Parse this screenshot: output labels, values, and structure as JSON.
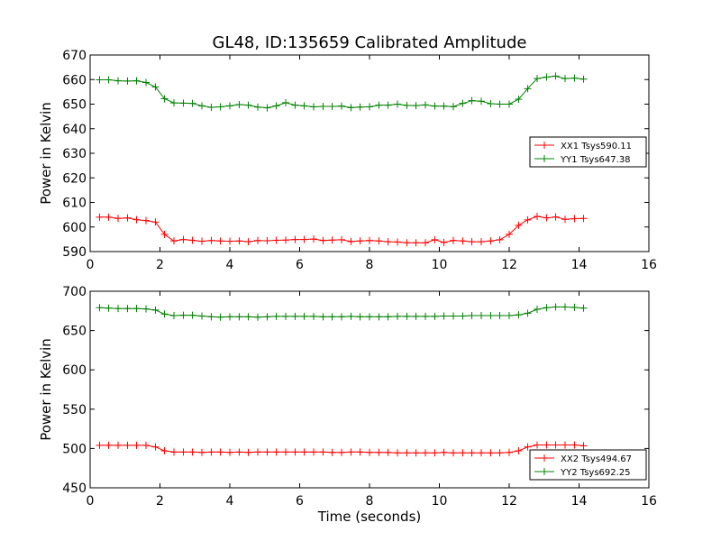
{
  "chart_data": [
    {
      "type": "line",
      "title": "GL48, ID:135659 Calibrated Amplitude",
      "xlabel": "",
      "ylabel": "Power in Kelvin",
      "xlim": [
        0,
        16
      ],
      "ylim": [
        590,
        670
      ],
      "xticks": [
        0,
        2,
        4,
        6,
        8,
        10,
        12,
        14,
        16
      ],
      "yticks": [
        590,
        600,
        610,
        620,
        630,
        640,
        650,
        660,
        670
      ],
      "legend_position": "center-right",
      "x": [
        0.27,
        0.53,
        0.8,
        1.07,
        1.33,
        1.6,
        1.87,
        2.13,
        2.4,
        2.67,
        2.93,
        3.2,
        3.47,
        3.73,
        4.0,
        4.27,
        4.53,
        4.8,
        5.07,
        5.33,
        5.6,
        5.87,
        6.13,
        6.4,
        6.67,
        6.93,
        7.2,
        7.47,
        7.73,
        8.0,
        8.27,
        8.53,
        8.8,
        9.07,
        9.33,
        9.6,
        9.87,
        10.13,
        10.4,
        10.67,
        10.93,
        11.2,
        11.47,
        11.73,
        12.0,
        12.27,
        12.53,
        12.8,
        13.07,
        13.33,
        13.6,
        13.87,
        14.13
      ],
      "series": [
        {
          "name": "XX1 Tsys590.11",
          "color": "#ff0000",
          "values": [
            604,
            604,
            603.5,
            603.7,
            603,
            602.6,
            602,
            597,
            594.3,
            594.9,
            594.6,
            594.2,
            594.5,
            594.3,
            594.2,
            594.3,
            594.0,
            594.5,
            594.4,
            594.6,
            594.7,
            594.9,
            594.9,
            595.1,
            594.5,
            594.7,
            594.8,
            594.1,
            594.3,
            594.5,
            594.3,
            594.0,
            593.9,
            593.6,
            593.6,
            593.6,
            594.8,
            593.7,
            594.5,
            594.3,
            594.0,
            594.0,
            594.3,
            594.8,
            597.0,
            600.7,
            602.9,
            604.3,
            603.7,
            604.1,
            603.1,
            603.4,
            603.5
          ]
        },
        {
          "name": "YY1 Tsys647.38",
          "color": "#008000",
          "values": [
            659.9,
            659.9,
            659.5,
            659.4,
            659.5,
            658.8,
            657.0,
            652.2,
            650.5,
            650.4,
            650.3,
            649.3,
            648.7,
            648.9,
            649.3,
            649.8,
            649.6,
            648.8,
            648.5,
            649.3,
            650.6,
            649.6,
            649.3,
            648.9,
            649.1,
            649.1,
            649.2,
            648.6,
            648.8,
            648.9,
            649.6,
            649.6,
            650.0,
            649.5,
            649.4,
            649.7,
            649.2,
            649.2,
            649.0,
            650.3,
            651.4,
            651.2,
            650.2,
            650.0,
            650.0,
            652.0,
            656.3,
            660.4,
            661.0,
            661.4,
            660.4,
            660.6,
            660.2
          ]
        }
      ]
    },
    {
      "type": "line",
      "title": "",
      "xlabel": "Time (seconds)",
      "ylabel": "Power in Kelvin",
      "xlim": [
        0,
        16
      ],
      "ylim": [
        450,
        700
      ],
      "xticks": [
        0,
        2,
        4,
        6,
        8,
        10,
        12,
        14,
        16
      ],
      "yticks": [
        450,
        500,
        550,
        600,
        650,
        700
      ],
      "legend_position": "lower-right",
      "x": [
        0.27,
        0.53,
        0.8,
        1.07,
        1.33,
        1.6,
        1.87,
        2.13,
        2.4,
        2.67,
        2.93,
        3.2,
        3.47,
        3.73,
        4.0,
        4.27,
        4.53,
        4.8,
        5.07,
        5.33,
        5.6,
        5.87,
        6.13,
        6.4,
        6.67,
        6.93,
        7.2,
        7.47,
        7.73,
        8.0,
        8.27,
        8.53,
        8.8,
        9.07,
        9.33,
        9.6,
        9.87,
        10.13,
        10.4,
        10.67,
        10.93,
        11.2,
        11.47,
        11.73,
        12.0,
        12.27,
        12.53,
        12.8,
        13.07,
        13.33,
        13.6,
        13.87,
        14.13
      ],
      "series": [
        {
          "name": "XX2 Tsys494.67",
          "color": "#ff0000",
          "values": [
            504,
            504,
            504,
            504,
            504,
            504,
            502,
            497,
            495.5,
            495.5,
            495.5,
            495,
            495.5,
            495.5,
            495,
            495.5,
            495,
            495.5,
            495.5,
            495.5,
            495.5,
            495.5,
            495.5,
            495.5,
            495.5,
            495,
            495,
            495.5,
            495.5,
            495,
            495,
            495,
            494.5,
            494.5,
            494.5,
            494.5,
            494.5,
            495,
            494.5,
            494.5,
            494.5,
            494.5,
            494.5,
            494.5,
            495,
            497,
            502,
            504.5,
            504.5,
            504.5,
            504.5,
            504.5,
            503.5
          ]
        },
        {
          "name": "YY2 Tsys692.25",
          "color": "#008000",
          "values": [
            679,
            678.5,
            678,
            678,
            678,
            677.5,
            676,
            671,
            669,
            669.5,
            669.5,
            668.5,
            667.5,
            667,
            667.5,
            667.5,
            667.5,
            667,
            667.5,
            668,
            668,
            668,
            668,
            668,
            667.5,
            667.5,
            667.5,
            668,
            667.5,
            667.5,
            667.5,
            667.5,
            668,
            668,
            668,
            668,
            668,
            668.5,
            668.5,
            668.5,
            669,
            669,
            669,
            669,
            669,
            670,
            672,
            677,
            679,
            680,
            680,
            679.5,
            678.5
          ]
        }
      ]
    }
  ]
}
